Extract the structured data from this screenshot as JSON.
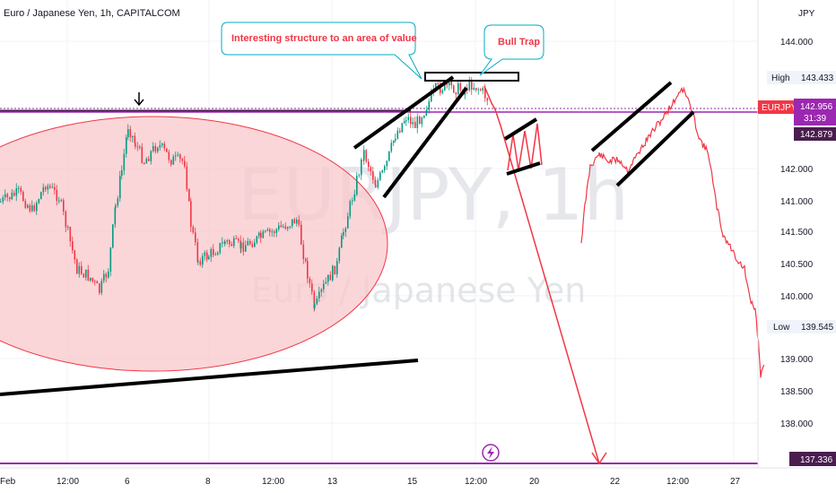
{
  "header": {
    "title": "Euro / Japanese Yen, 1h, CAPITALCOM"
  },
  "watermark": {
    "symbol": "EURJPY, 1h",
    "name": "Euro / Japanese Yen"
  },
  "annotations": {
    "structure_note": "Interesting structure to an area of value",
    "bull_trap": "Bull Trap"
  },
  "price_axis": {
    "currency": "JPY",
    "ticks": [
      "144.000",
      "142.000",
      "141.500",
      "141.000",
      "140.500",
      "140.000",
      "139.000",
      "138.500",
      "138.000"
    ]
  },
  "price_tags": {
    "high_label": "High",
    "high_value": "143.433",
    "symbol": "EURJPY",
    "last_price": "142.956",
    "countdown": "31:39",
    "level_price": "142.879",
    "low_label": "Low",
    "low_value": "139.545",
    "target_price": "137.336"
  },
  "time_axis": {
    "labels": [
      "Feb",
      "12:00",
      "6",
      "8",
      "12:00",
      "13",
      "15",
      "12:00",
      "20",
      "22",
      "12:00",
      "27"
    ]
  },
  "colors": {
    "bull": "#089981",
    "bear": "#f23645",
    "projection": "#f23645",
    "level_purple": "#9c27b0",
    "dark_level": "#4a1d4f",
    "ellipse_fill": "#f8c8cc",
    "ellipse_stroke": "#f23645",
    "callout_border": "#00acc1",
    "grid": "#f0f3fa"
  },
  "icons": {
    "marker": "lightning-icon",
    "arrow": "arrow-down-icon"
  }
}
